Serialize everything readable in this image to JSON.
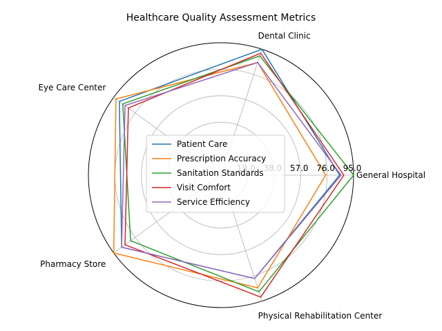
{
  "chart_data": {
    "type": "radar",
    "title": "Healthcare Quality Assessment Metrics",
    "categories": [
      "General Hospital",
      "Dental Clinic",
      "Eye Care Center",
      "Pharmacy Store",
      "Physical Rehabilitation Center"
    ],
    "r_ticks": [
      19.0,
      38.0,
      57.0,
      76.0,
      95.0
    ],
    "r_tick_labels": [
      "19.0",
      "38.0",
      "57.0",
      "76.0",
      "95.0"
    ],
    "rlim": [
      0,
      95
    ],
    "grid": true,
    "legend_position": "center",
    "series": [
      {
        "name": "Patient Care",
        "color": "#1f77b4",
        "values": [
          85,
          95,
          90,
          88,
          78
        ]
      },
      {
        "name": "Prescription Accuracy",
        "color": "#ff7f0e",
        "values": [
          75,
          85,
          93,
          95,
          85
        ]
      },
      {
        "name": "Sanitation Standards",
        "color": "#2ca02c",
        "values": [
          95,
          90,
          87,
          80,
          88
        ]
      },
      {
        "name": "Visit Comfort",
        "color": "#d62728",
        "values": [
          88,
          92,
          82,
          85,
          92
        ]
      },
      {
        "name": "Service Efficiency",
        "color": "#9467bd",
        "values": [
          86,
          85,
          85,
          88,
          78
        ]
      }
    ]
  }
}
